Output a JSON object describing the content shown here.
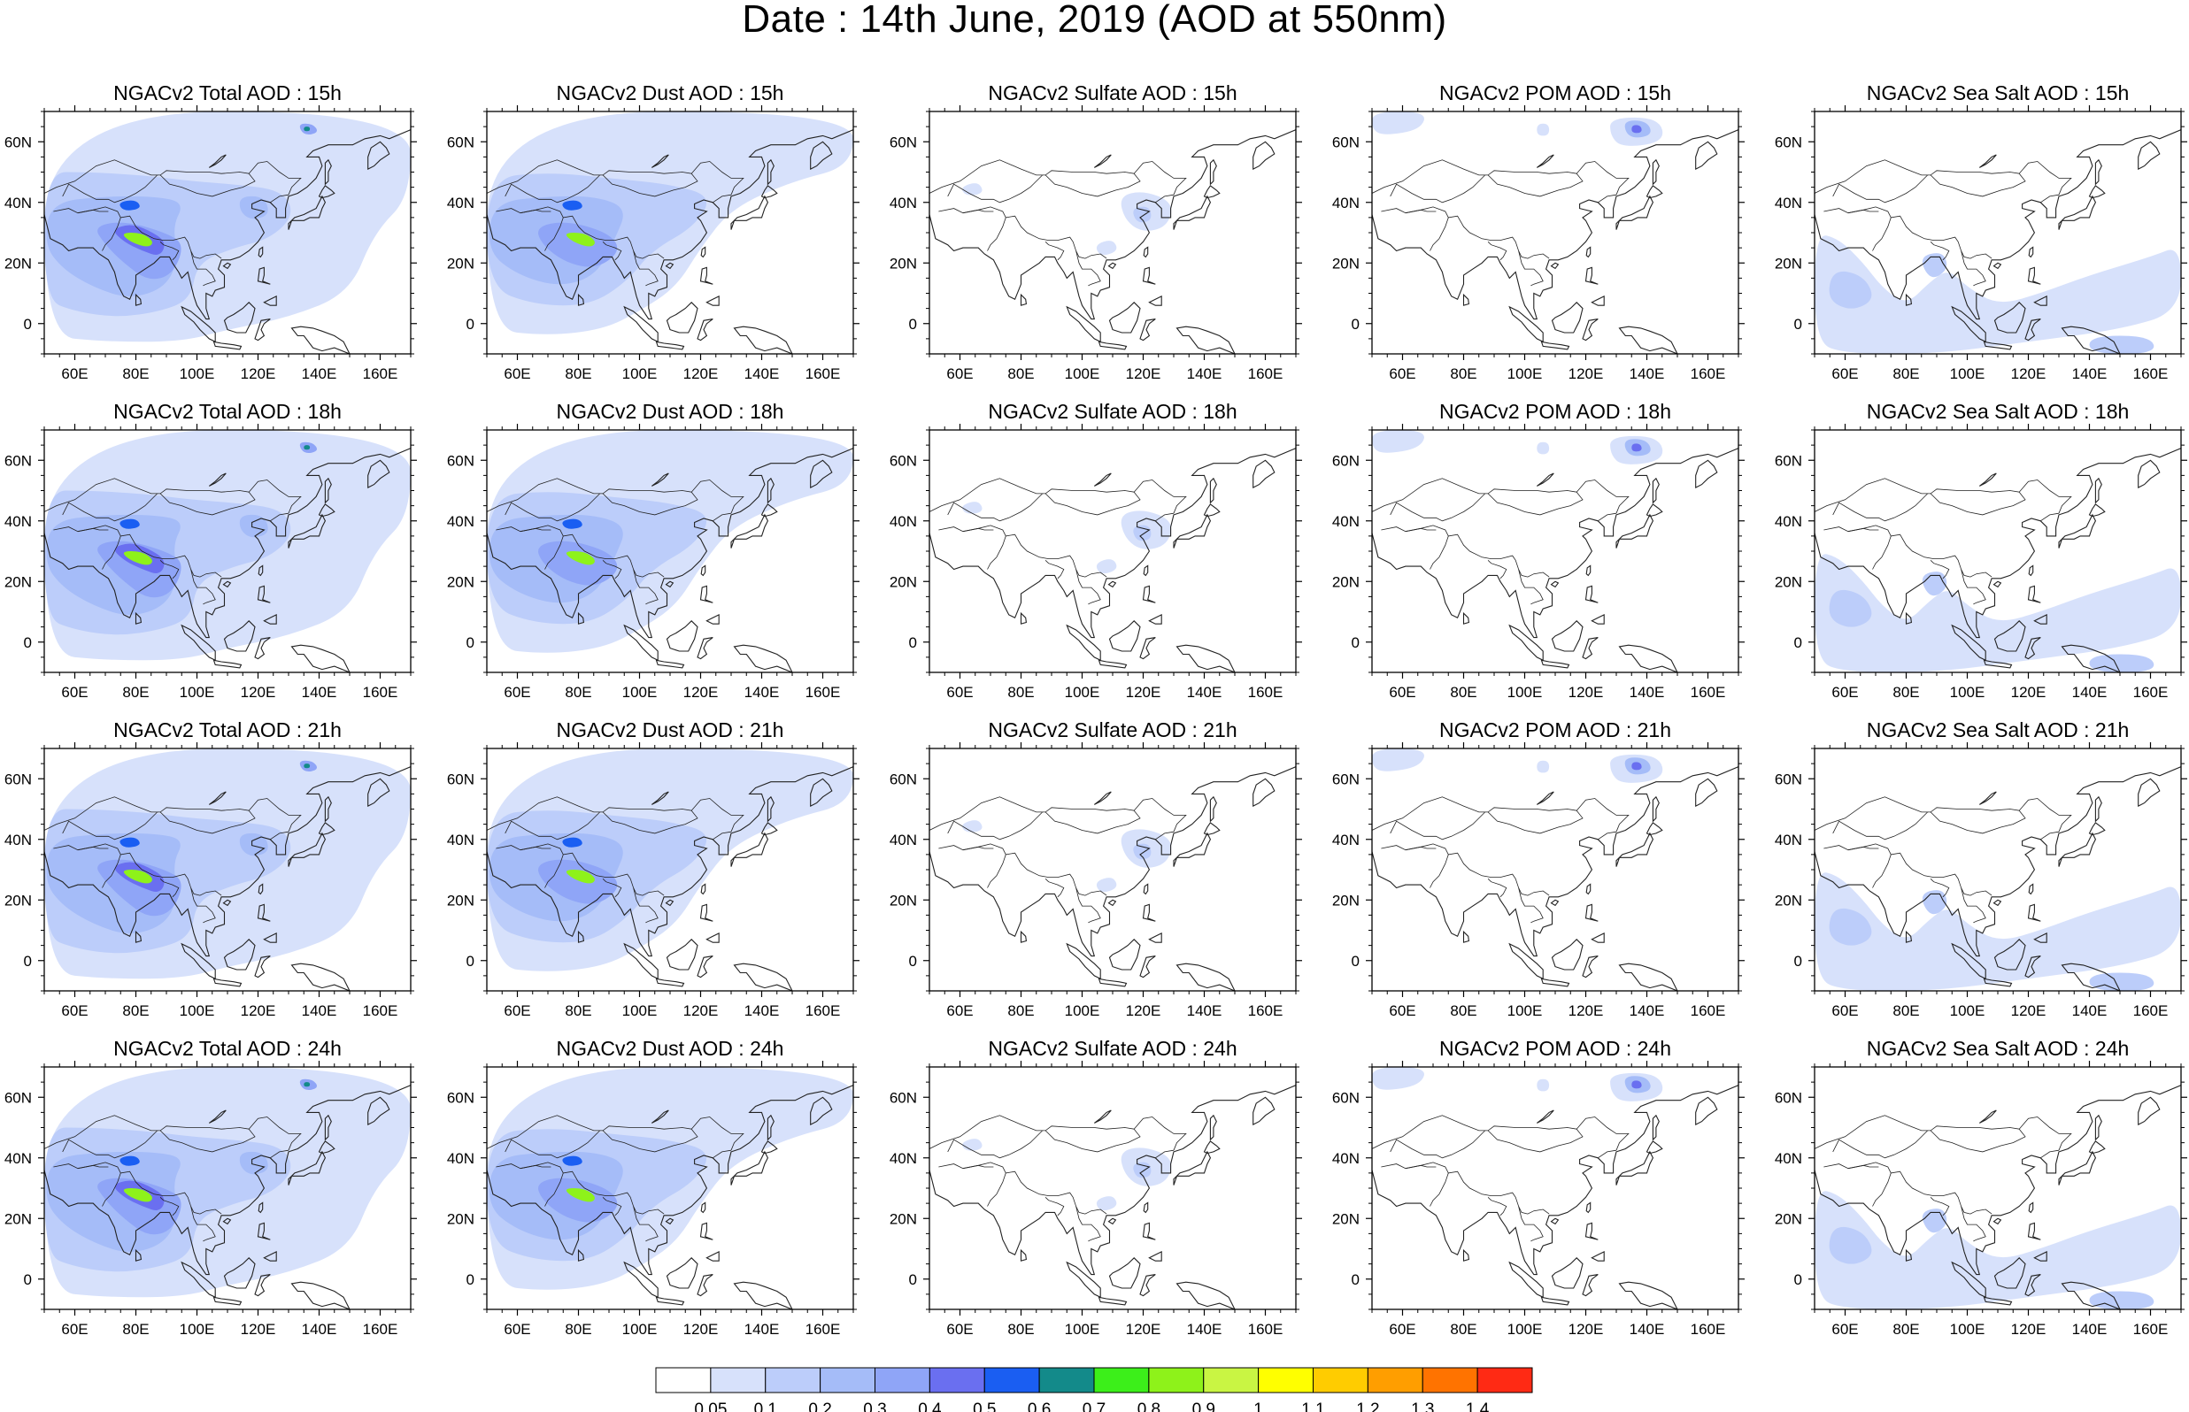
{
  "figure_title": "Date : 14th June, 2019 (AOD at 550nm)",
  "panel_titles": [
    [
      "NGACv2 Total AOD : 15h",
      "NGACv2 Dust AOD : 15h",
      "NGACv2 Sulfate AOD : 15h",
      "NGACv2 POM AOD : 15h",
      "NGACv2 Sea Salt AOD : 15h"
    ],
    [
      "NGACv2 Total AOD : 18h",
      "NGACv2 Dust AOD : 18h",
      "NGACv2 Sulfate AOD : 18h",
      "NGACv2 POM AOD : 18h",
      "NGACv2 Sea Salt AOD : 18h"
    ],
    [
      "NGACv2 Total AOD : 21h",
      "NGACv2 Dust AOD : 21h",
      "NGACv2 Sulfate AOD : 21h",
      "NGACv2 POM AOD : 21h",
      "NGACv2 Sea Salt AOD : 21h"
    ],
    [
      "NGACv2 Total AOD : 24h",
      "NGACv2 Dust AOD : 24h",
      "NGACv2 Sulfate AOD : 24h",
      "NGACv2 POM AOD : 24h",
      "NGACv2 Sea Salt  AOD : 24h"
    ]
  ],
  "lon_labels": [
    "60E",
    "80E",
    "100E",
    "120E",
    "140E",
    "160E"
  ],
  "lat_labels": [
    "60N",
    "40N",
    "20N",
    "0"
  ],
  "lon_values": [
    60,
    80,
    100,
    120,
    140,
    160
  ],
  "lat_values": [
    60,
    40,
    20,
    0
  ],
  "map_extent": {
    "lon": [
      50,
      170
    ],
    "lat": [
      -10,
      70
    ]
  },
  "colorbar": {
    "labels": [
      "0.05",
      "0.1",
      "0.2",
      "0.3",
      "0.4",
      "0.5",
      "0.6",
      "0.7",
      "0.8",
      "0.9",
      "1",
      "1.1",
      "1.2",
      "1.3",
      "1.4"
    ],
    "colors": [
      "#ffffff",
      "#d7e1fb",
      "#bccdfa",
      "#a5bcf8",
      "#8fa5f7",
      "#6a6ff0",
      "#1a5ef2",
      "#138a8a",
      "#3cef1a",
      "#8ef21a",
      "#c9f543",
      "#ffff00",
      "#ffcc00",
      "#ff9e00",
      "#ff7300",
      "#ff2a14"
    ]
  }
}
